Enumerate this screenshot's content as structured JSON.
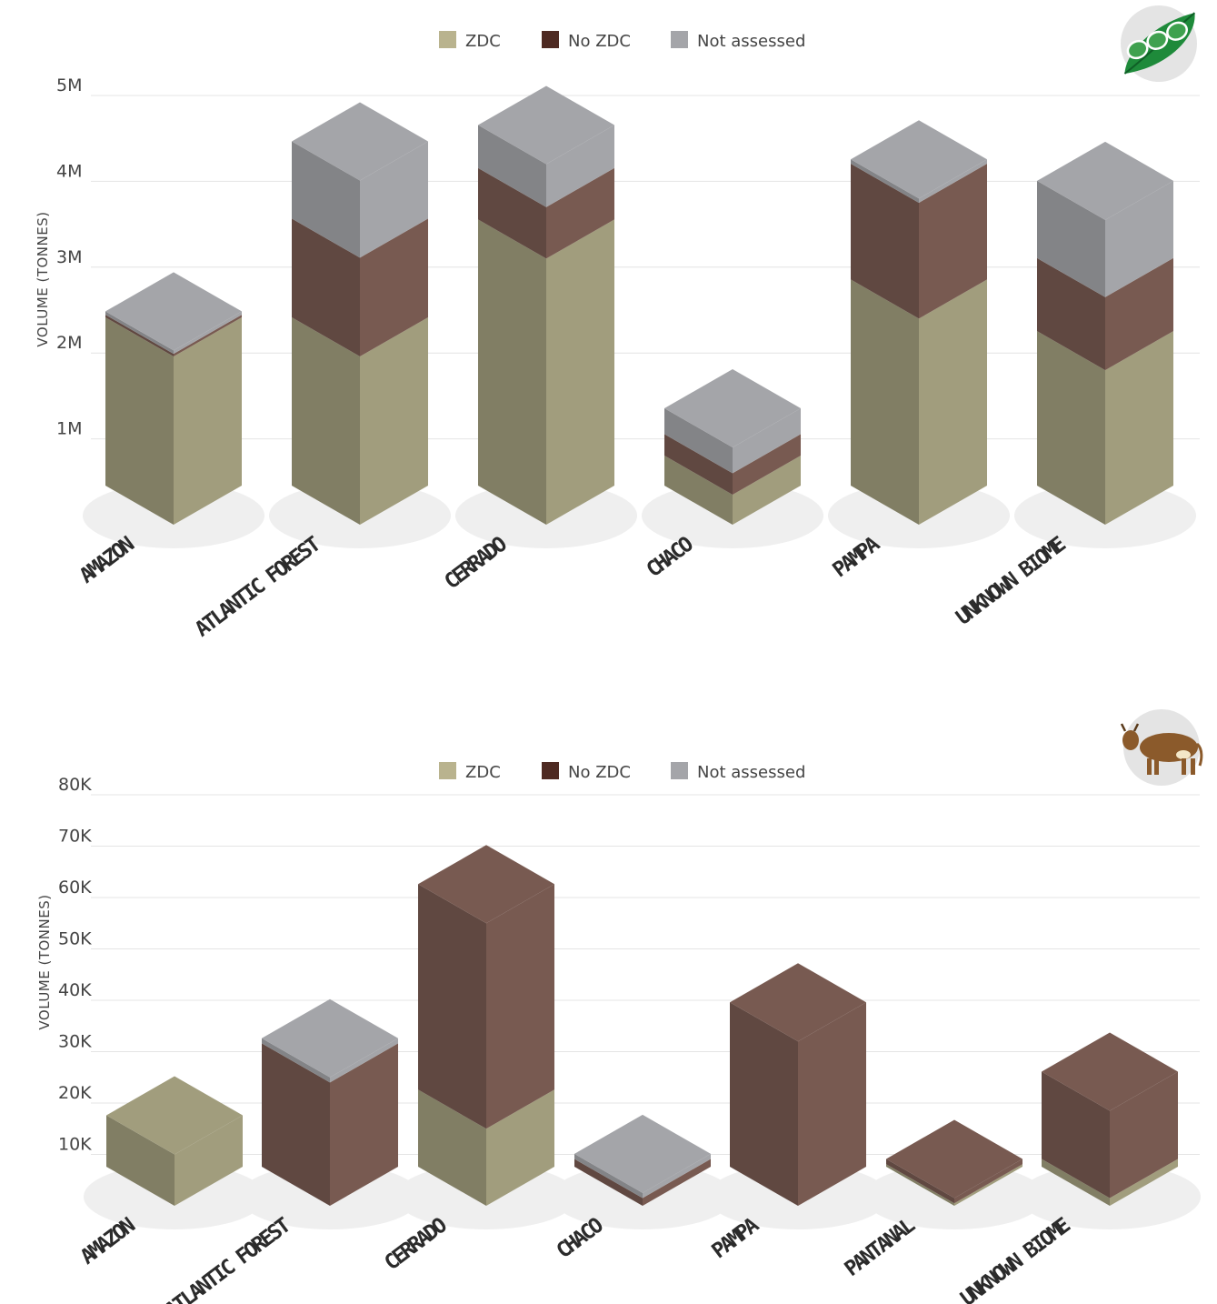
{
  "colors": {
    "ZDC": "#a19d7d",
    "No ZDC": "#785a51",
    "Not assessed": "#a4a5a9",
    "legend_ZDC": "#b9b38e",
    "legend_No ZDC": "#4e2a22",
    "legend_Not assessed": "#a4a5a9",
    "grid": "#e4e4e4",
    "ellipse": "#efefef",
    "icon_circle": "#e4e4e4",
    "soy_green": "#1e8a3a",
    "cow_brown": "#8b5a2b"
  },
  "chart_data": [
    {
      "type": "bar",
      "stacked": true,
      "icon": "soybean-icon",
      "title": "",
      "xlabel": "",
      "ylabel": "VOLUME (TONNES)",
      "ylim": [
        0,
        5000000
      ],
      "yticks": [
        {
          "value": 1000000,
          "label": "1M"
        },
        {
          "value": 2000000,
          "label": "2M"
        },
        {
          "value": 3000000,
          "label": "3M"
        },
        {
          "value": 4000000,
          "label": "4M"
        },
        {
          "value": 5000000,
          "label": "5M"
        }
      ],
      "grid": true,
      "legend_position": "top-center",
      "legend": [
        "ZDC",
        "No ZDC",
        "Not assessed"
      ],
      "categories": [
        "AMAZON",
        "ATLANTIC FOREST",
        "CERRADO",
        "CHACO",
        "PAMPA",
        "UNKNOWN BIOME"
      ],
      "series": [
        {
          "name": "ZDC",
          "values": [
            1960000,
            1960000,
            3100000,
            350000,
            2400000,
            1800000
          ]
        },
        {
          "name": "No ZDC",
          "values": [
            30000,
            1150000,
            600000,
            250000,
            1350000,
            850000
          ]
        },
        {
          "name": "Not assessed",
          "values": [
            40000,
            900000,
            500000,
            300000,
            50000,
            900000
          ]
        }
      ]
    },
    {
      "type": "bar",
      "stacked": true,
      "icon": "cow-icon",
      "title": "",
      "xlabel": "",
      "ylabel": "VOLUME (TONNES)",
      "ylim": [
        0,
        80000
      ],
      "yticks": [
        {
          "value": 10000,
          "label": "10K"
        },
        {
          "value": 20000,
          "label": "20K"
        },
        {
          "value": 30000,
          "label": "30K"
        },
        {
          "value": 40000,
          "label": "40K"
        },
        {
          "value": 50000,
          "label": "50K"
        },
        {
          "value": 60000,
          "label": "60K"
        },
        {
          "value": 70000,
          "label": "70K"
        },
        {
          "value": 80000,
          "label": "80K"
        }
      ],
      "grid": true,
      "legend_position": "top-center",
      "legend": [
        "ZDC",
        "No ZDC",
        "Not assessed"
      ],
      "categories": [
        "AMAZON",
        "ATLANTIC FOREST",
        "CERRADO",
        "CHACO",
        "PAMPA",
        "PANTANAL",
        "UNKNOWN BIOME"
      ],
      "series": [
        {
          "name": "ZDC",
          "values": [
            10000,
            0,
            15000,
            0,
            0,
            500,
            1500
          ]
        },
        {
          "name": "No ZDC",
          "values": [
            0,
            24000,
            40000,
            1500,
            32000,
            1000,
            17000
          ]
        },
        {
          "name": "Not assessed",
          "values": [
            0,
            1000,
            0,
            1000,
            0,
            0,
            0
          ]
        }
      ]
    }
  ]
}
